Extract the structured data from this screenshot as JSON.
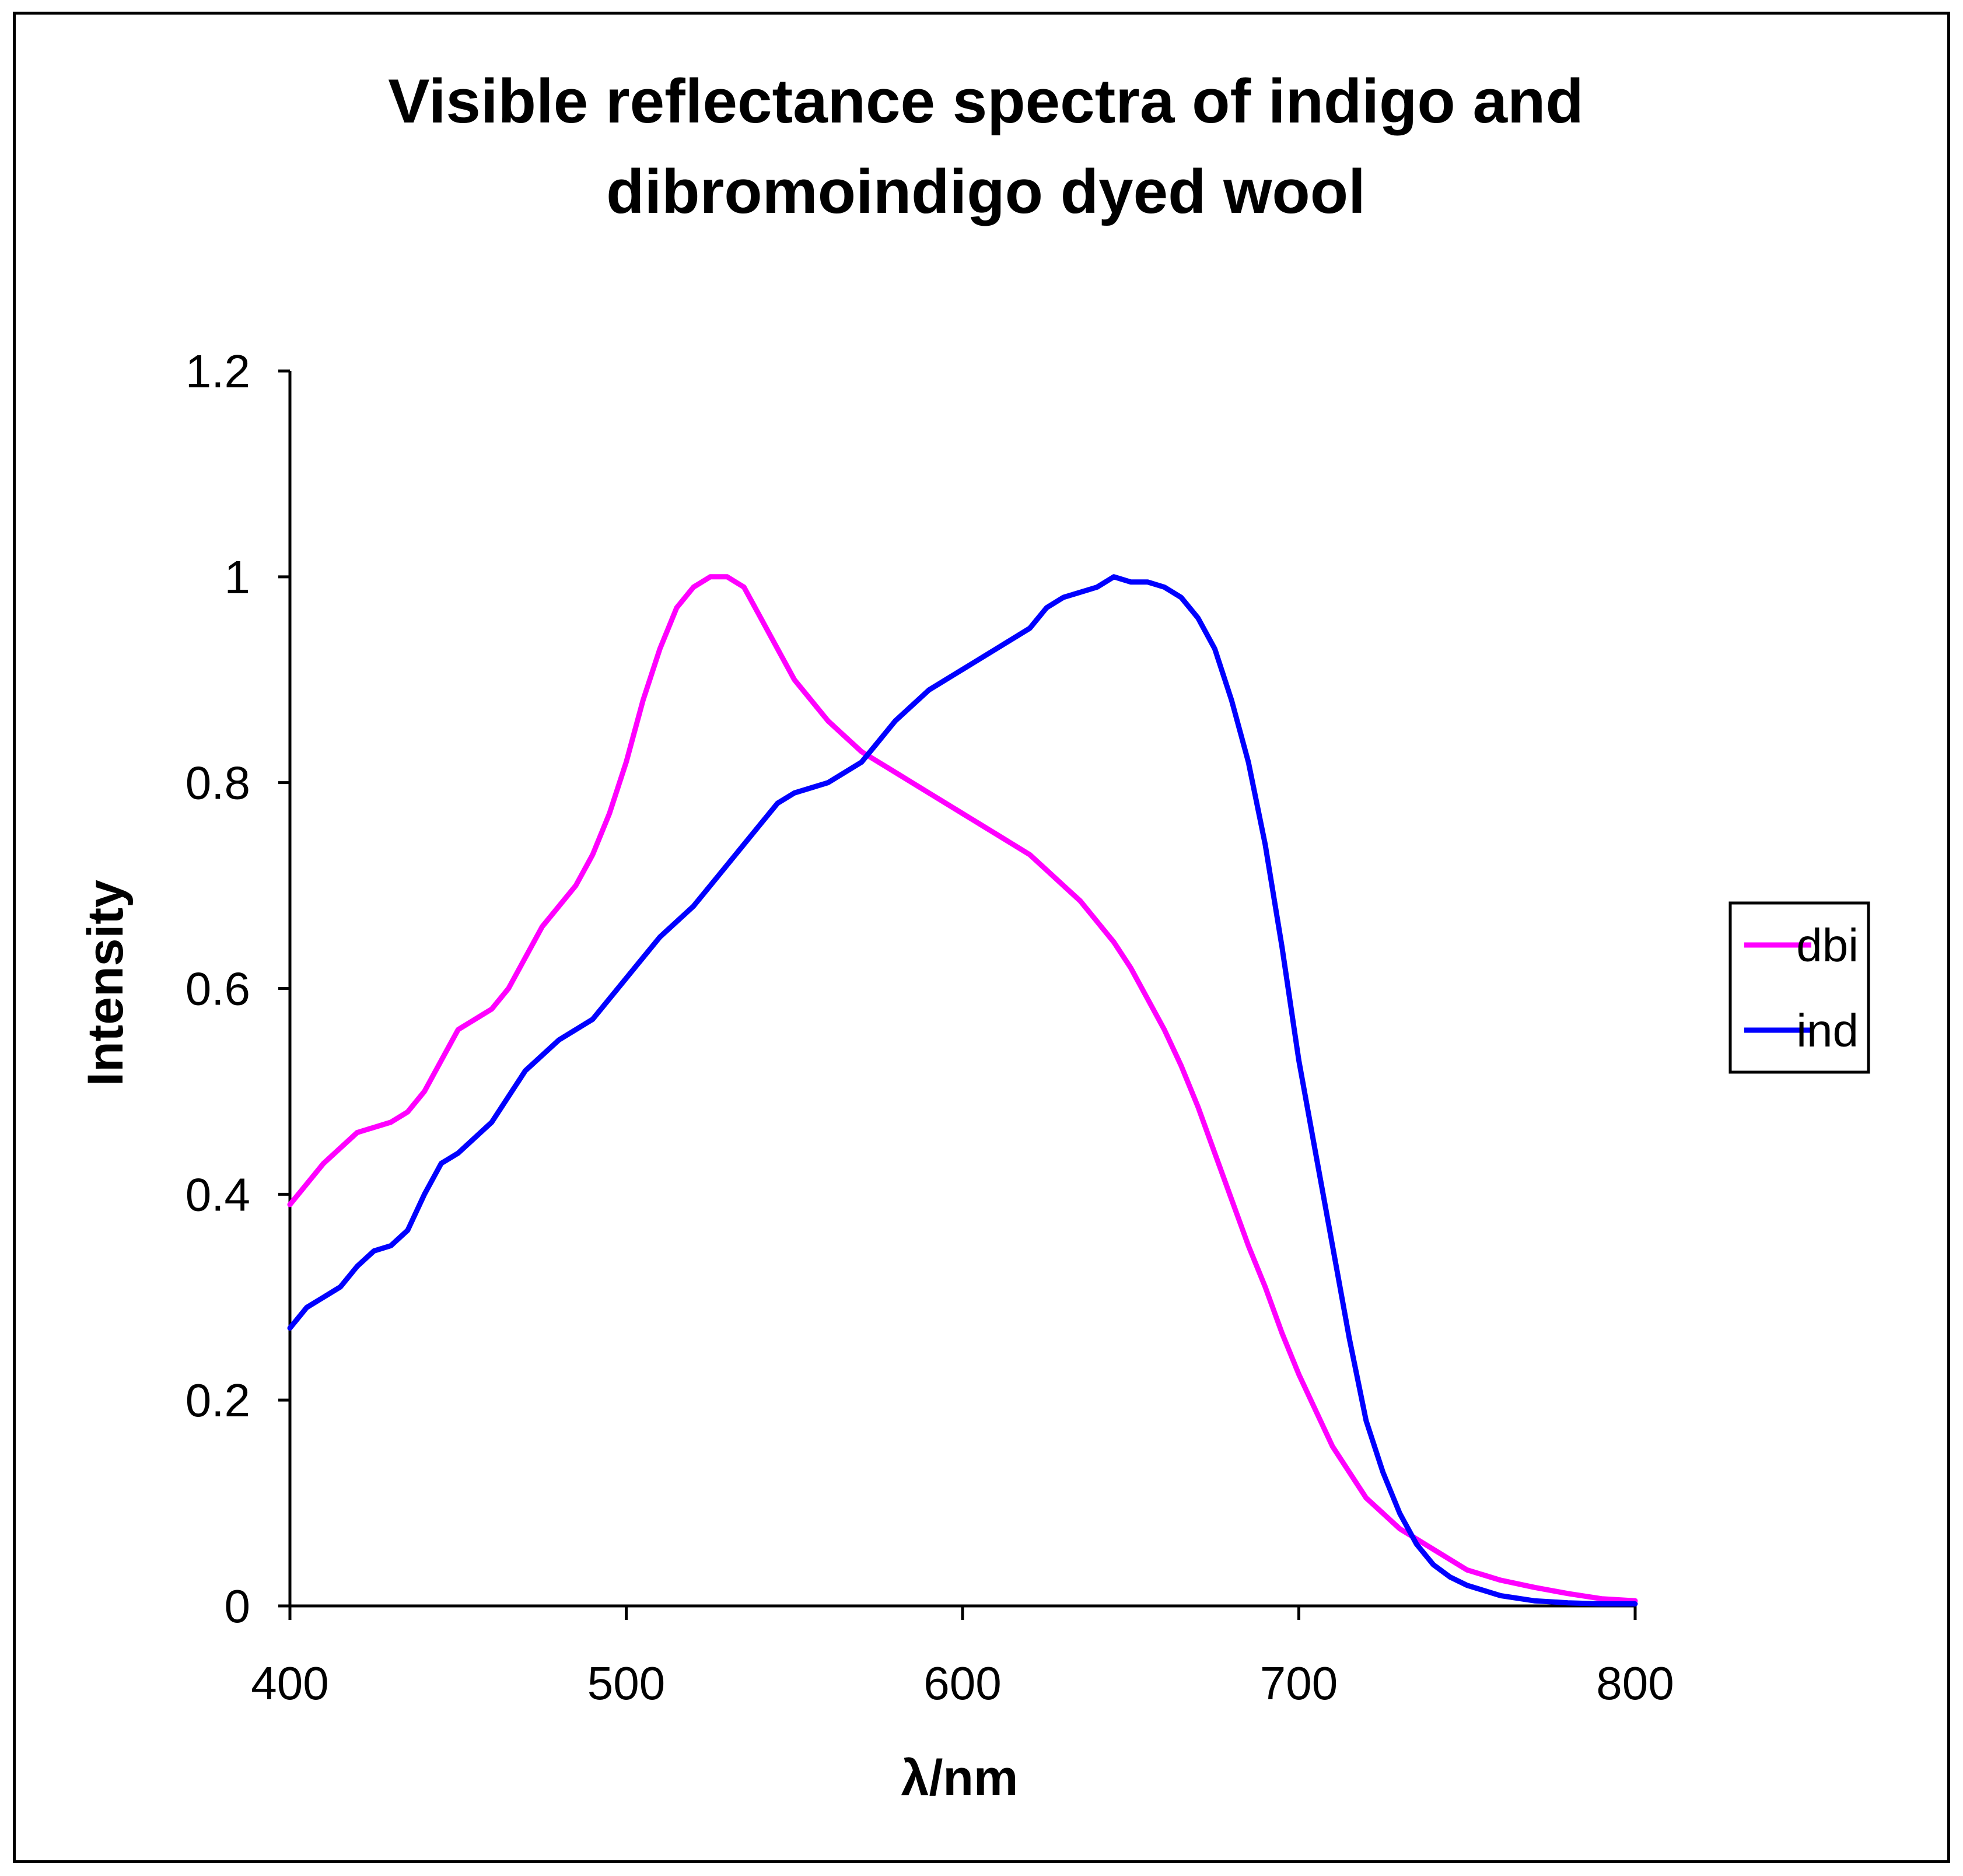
{
  "chart_data": {
    "type": "line",
    "title_lines": [
      "Visible reflectance spectra of indigo and",
      "dibromoindigo dyed wool"
    ],
    "xlabel": "λ/nm",
    "ylabel": "Intensity",
    "xlim": [
      400,
      800
    ],
    "ylim": [
      0,
      1.2
    ],
    "x_ticks": [
      400,
      500,
      600,
      700,
      800
    ],
    "x_tick_labels": [
      "400",
      "500",
      "600",
      "700",
      "800"
    ],
    "y_ticks": [
      0,
      0.2,
      0.4,
      0.6,
      0.8,
      1.0,
      1.2
    ],
    "y_tick_labels": [
      "0",
      "0.2",
      "0.4",
      "0.6",
      "0.8",
      "1",
      "1.2"
    ],
    "grid": false,
    "legend_position": "right",
    "series": [
      {
        "name": "dbi",
        "color": "#ff00ff",
        "x": [
          400,
          405,
          410,
          420,
          430,
          435,
          440,
          445,
          450,
          455,
          460,
          465,
          470,
          475,
          480,
          485,
          490,
          495,
          500,
          505,
          510,
          515,
          520,
          525,
          530,
          535,
          540,
          545,
          550,
          555,
          560,
          565,
          570,
          575,
          580,
          590,
          600,
          610,
          620,
          625,
          630,
          635,
          640,
          645,
          650,
          655,
          660,
          665,
          670,
          675,
          680,
          685,
          690,
          695,
          700,
          705,
          710,
          715,
          720,
          725,
          730,
          735,
          740,
          745,
          750,
          760,
          770,
          780,
          790,
          800
        ],
        "y": [
          0.39,
          0.41,
          0.43,
          0.46,
          0.47,
          0.48,
          0.5,
          0.53,
          0.56,
          0.57,
          0.58,
          0.6,
          0.63,
          0.66,
          0.68,
          0.7,
          0.73,
          0.77,
          0.82,
          0.88,
          0.93,
          0.97,
          0.99,
          1.0,
          1.0,
          0.99,
          0.96,
          0.93,
          0.9,
          0.88,
          0.86,
          0.845,
          0.83,
          0.82,
          0.81,
          0.79,
          0.77,
          0.75,
          0.73,
          0.715,
          0.7,
          0.685,
          0.665,
          0.645,
          0.62,
          0.59,
          0.56,
          0.525,
          0.485,
          0.44,
          0.395,
          0.35,
          0.31,
          0.265,
          0.225,
          0.19,
          0.155,
          0.13,
          0.105,
          0.09,
          0.075,
          0.065,
          0.055,
          0.045,
          0.035,
          0.025,
          0.018,
          0.012,
          0.007,
          0.005
        ]
      },
      {
        "name": "ind",
        "color": "#0000ff",
        "x": [
          400,
          405,
          410,
          415,
          420,
          425,
          430,
          435,
          440,
          445,
          450,
          460,
          470,
          480,
          490,
          495,
          500,
          505,
          510,
          520,
          530,
          540,
          545,
          550,
          560,
          570,
          575,
          580,
          590,
          600,
          610,
          620,
          625,
          630,
          640,
          645,
          650,
          655,
          660,
          665,
          670,
          675,
          680,
          685,
          690,
          695,
          700,
          705,
          710,
          715,
          720,
          725,
          730,
          735,
          740,
          745,
          750,
          760,
          770,
          780,
          790,
          800
        ],
        "y": [
          0.27,
          0.29,
          0.3,
          0.31,
          0.33,
          0.345,
          0.35,
          0.365,
          0.4,
          0.43,
          0.44,
          0.47,
          0.52,
          0.55,
          0.57,
          0.59,
          0.61,
          0.63,
          0.65,
          0.68,
          0.72,
          0.76,
          0.78,
          0.79,
          0.8,
          0.82,
          0.84,
          0.86,
          0.89,
          0.91,
          0.93,
          0.95,
          0.97,
          0.98,
          0.99,
          1.0,
          0.995,
          0.995,
          0.99,
          0.98,
          0.96,
          0.93,
          0.88,
          0.82,
          0.74,
          0.64,
          0.53,
          0.44,
          0.35,
          0.26,
          0.18,
          0.13,
          0.09,
          0.06,
          0.04,
          0.028,
          0.02,
          0.01,
          0.005,
          0.003,
          0.002,
          0.002
        ]
      }
    ]
  }
}
